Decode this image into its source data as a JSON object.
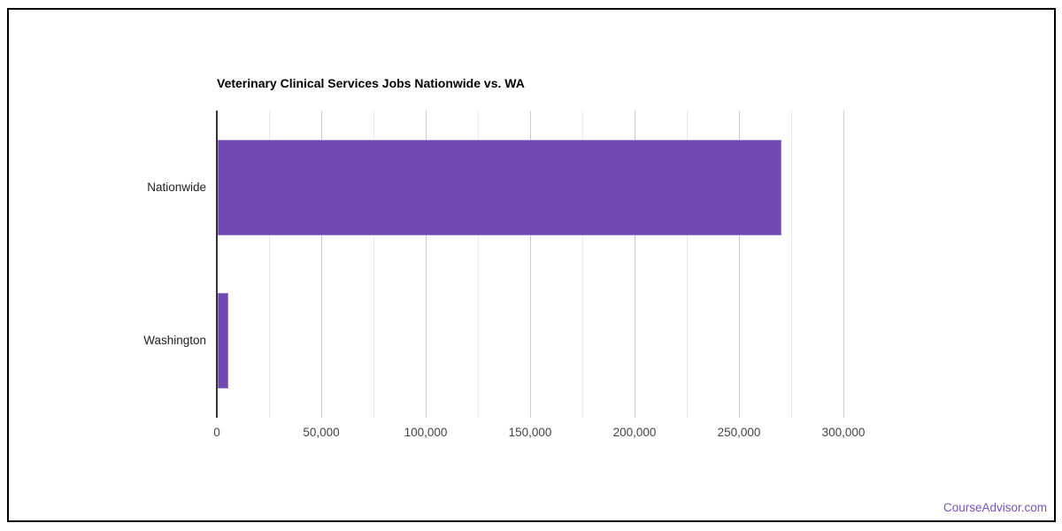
{
  "page": {
    "footer": {
      "brand": "CourseAdvisor.com",
      "brand_color": "#7a52c2"
    }
  },
  "chart_data": {
    "type": "bar",
    "orientation": "horizontal",
    "title": "Veterinary Clinical Services Jobs Nationwide vs. WA",
    "categories": [
      "Nationwide",
      "Washington"
    ],
    "values": [
      270000,
      5000
    ],
    "xlabel": "",
    "ylabel": "",
    "xlim": [
      0,
      300000
    ],
    "x_tick_step": 50000,
    "x_minor_gridline_step": 25000,
    "x_tick_labels": [
      "0",
      "50,000",
      "100,000",
      "150,000",
      "200,000",
      "250,000",
      "300,000"
    ],
    "grid": true,
    "legend": "none",
    "colors": {
      "bar_fill": "#7248b3",
      "bar_stroke": "#9b7fd0",
      "major_gridline": "#cccccc",
      "minor_gridline": "#ebebeb",
      "axis_line": "#333333",
      "tick_label": "#444444",
      "category_label": "#222222",
      "title": "#000000"
    }
  }
}
